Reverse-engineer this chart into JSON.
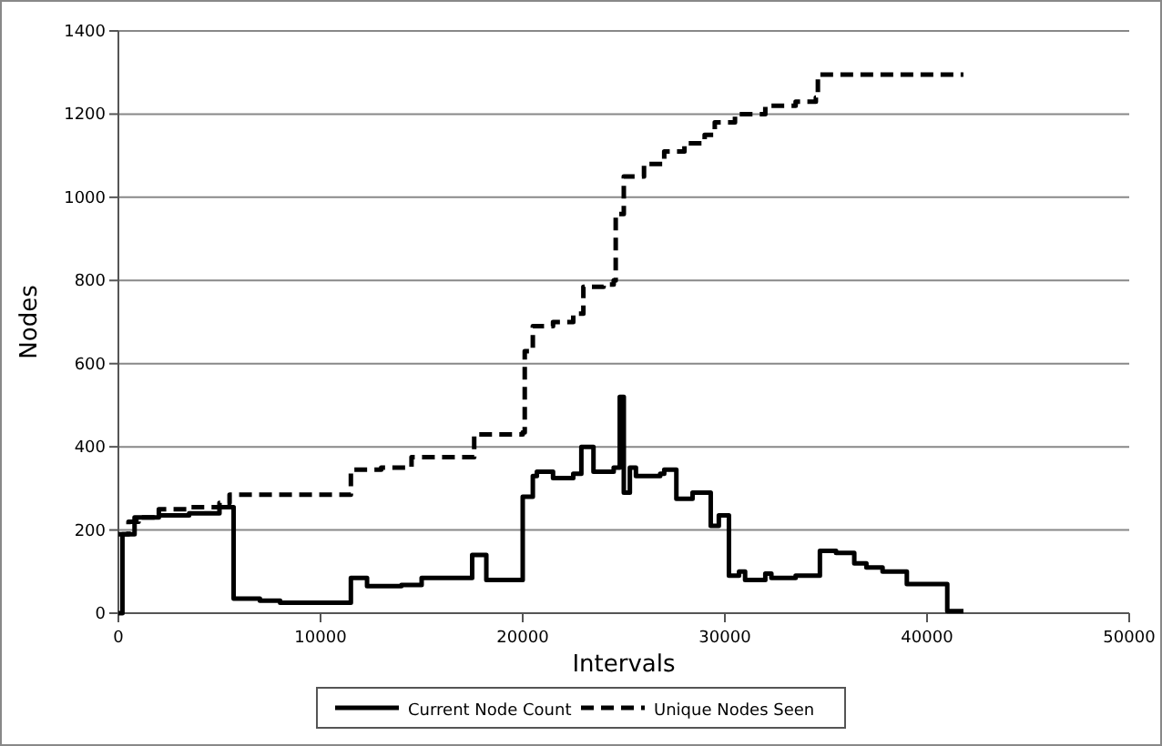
{
  "chart_data": {
    "type": "step",
    "xlabel": "Intervals",
    "ylabel": "Nodes",
    "xlim": [
      0,
      50000
    ],
    "xticks": [
      0,
      10000,
      20000,
      30000,
      40000,
      50000
    ],
    "ylim": [
      0,
      1400
    ],
    "yticks": [
      0,
      200,
      400,
      600,
      800,
      1000,
      1200,
      1400
    ],
    "grid": "y",
    "legend": "bottom",
    "series": [
      {
        "name": "Current Node Count",
        "color": "#000000",
        "line_style": "solid",
        "x": [
          0,
          200,
          800,
          2000,
          3500,
          5000,
          5700,
          7000,
          8000,
          11500,
          12300,
          14000,
          15000,
          17500,
          18200,
          20000,
          20500,
          20700,
          21500,
          22500,
          22900,
          23500,
          24500,
          24800,
          25000,
          25300,
          25600,
          26800,
          27000,
          27600,
          28400,
          29300,
          29700,
          30200,
          30700,
          31000,
          32000,
          32300,
          33500,
          34700,
          35500,
          36400,
          37000,
          37800,
          39000,
          41000,
          41800
        ],
        "values": [
          0,
          190,
          230,
          235,
          240,
          255,
          35,
          30,
          25,
          85,
          65,
          68,
          85,
          140,
          80,
          280,
          330,
          340,
          325,
          335,
          400,
          340,
          350,
          520,
          290,
          350,
          330,
          335,
          345,
          275,
          290,
          210,
          235,
          90,
          100,
          80,
          95,
          85,
          90,
          150,
          145,
          120,
          110,
          100,
          70,
          5,
          5
        ]
      },
      {
        "name": "Unique Nodes Seen",
        "color": "#000000",
        "line_style": "dashed",
        "x": [
          0,
          500,
          1000,
          2000,
          3500,
          5000,
          5500,
          11500,
          13000,
          14500,
          17600,
          20000,
          20100,
          20500,
          21500,
          22500,
          23000,
          24000,
          24500,
          24600,
          25000,
          26000,
          27000,
          28000,
          29000,
          29500,
          30500,
          32000,
          33500,
          34500,
          34600,
          41800
        ],
        "values": [
          190,
          220,
          230,
          250,
          255,
          265,
          285,
          345,
          350,
          375,
          430,
          435,
          630,
          690,
          700,
          720,
          785,
          790,
          800,
          960,
          1050,
          1080,
          1110,
          1130,
          1150,
          1180,
          1200,
          1220,
          1230,
          1240,
          1295,
          1295
        ]
      }
    ]
  }
}
